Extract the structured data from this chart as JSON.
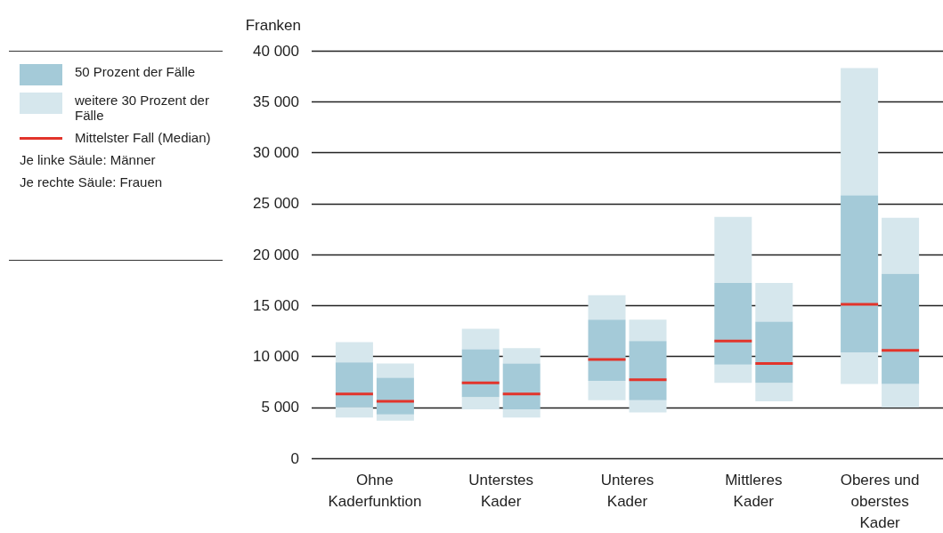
{
  "chart_data": {
    "type": "box",
    "ylabel": "Franken",
    "categories": [
      "Ohne\nKaderfunktion",
      "Unterstes\nKader",
      "Unteres\nKader",
      "Mittleres\nKader",
      "Oberes und\noberstes\nKader"
    ],
    "series": [
      {
        "color": "#a4cad8",
        "boxes": [
          {
            "low": 4000,
            "q1": 5000,
            "median": 6300,
            "q3": 9400,
            "high": 11400
          },
          {
            "low": 4800,
            "q1": 6000,
            "median": 7400,
            "q3": 10700,
            "high": 12700
          },
          {
            "low": 5700,
            "q1": 7600,
            "median": 9700,
            "q3": 13600,
            "high": 16000
          },
          {
            "low": 7400,
            "q1": 9200,
            "median": 11500,
            "q3": 17200,
            "high": 23700
          },
          {
            "low": 7300,
            "q1": 10400,
            "median": 15100,
            "q3": 25800,
            "high": 38300
          }
        ]
      },
      {
        "color": "#a4cad8",
        "boxes": [
          {
            "low": 3700,
            "q1": 4300,
            "median": 5600,
            "q3": 7900,
            "high": 9300
          },
          {
            "low": 4000,
            "q1": 4800,
            "median": 6300,
            "q3": 9300,
            "high": 10800
          },
          {
            "low": 4500,
            "q1": 5700,
            "median": 7700,
            "q3": 11500,
            "high": 13600
          },
          {
            "low": 5600,
            "q1": 7400,
            "median": 9300,
            "q3": 13400,
            "high": 17200
          },
          {
            "low": 5000,
            "q1": 7300,
            "median": 10600,
            "q3": 18100,
            "high": 23600
          }
        ]
      }
    ],
    "ylim": [
      0,
      40000
    ],
    "yticks": [
      0,
      {
        "value": 5000,
        "label": "5 000"
      },
      {
        "value": 10000,
        "label": "10 000"
      },
      {
        "value": 15000,
        "label": "15 000"
      },
      {
        "value": 20000,
        "label": "20 000"
      },
      {
        "value": 25000,
        "label": "25 000"
      },
      {
        "value": 30000,
        "label": "30 000"
      },
      {
        "value": 35000,
        "label": "35 000"
      },
      {
        "value": 40000,
        "label": "40 000"
      }
    ],
    "grid": "y",
    "annotations": [
      "50 Prozent der Fälle",
      "weitere 30 Prozent der Fälle",
      "Mittelster Fall (Median)",
      "Je linke Säule: Männer",
      "Je rechte Säule: Frauen"
    ]
  }
}
